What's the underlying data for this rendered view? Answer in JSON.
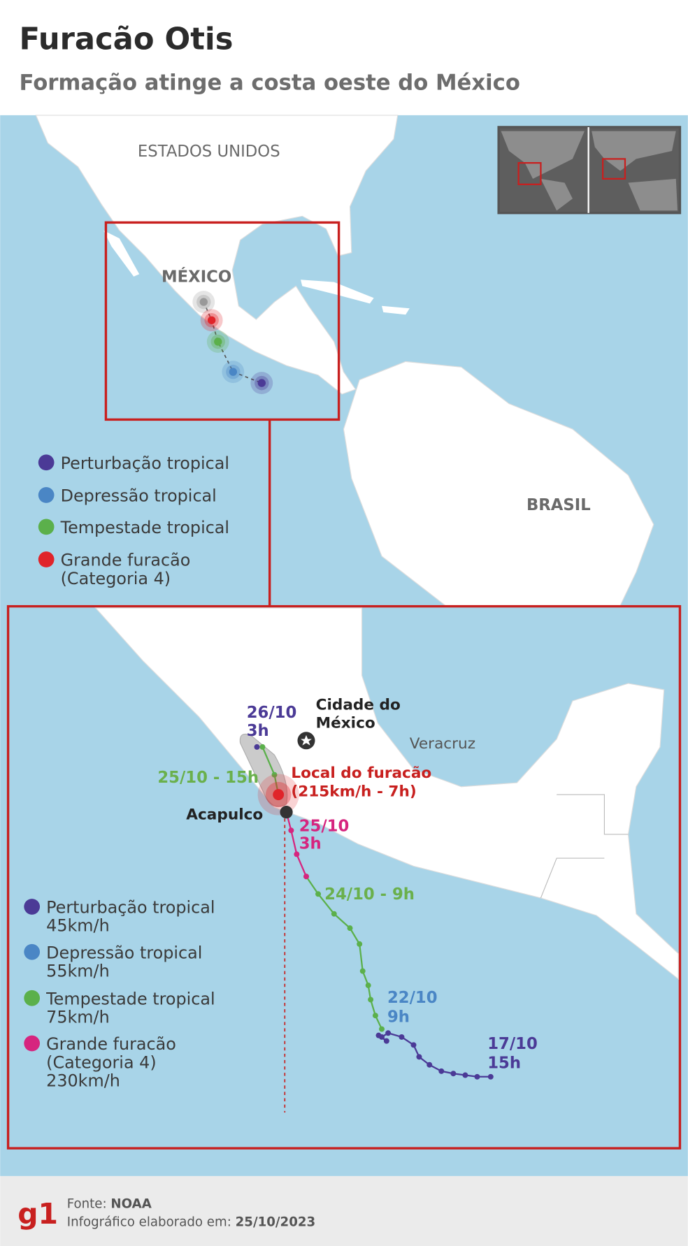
{
  "header": {
    "title": "Furacão Otis",
    "subtitle": "Formação atinge a costa oeste do México"
  },
  "overview_map": {
    "labels": [
      "ESTADOS UNIDOS",
      "MÉXICO",
      "BRASIL"
    ],
    "legend": [
      {
        "lines": [
          "Perturbação tropical"
        ]
      },
      {
        "lines": [
          "Depressão tropical"
        ]
      },
      {
        "lines": [
          "Tempestade tropical"
        ]
      },
      {
        "lines": [
          "Grande furacão",
          "(Categoria 4)"
        ]
      }
    ]
  },
  "detail_map": {
    "places": {
      "capital": [
        "Cidade do",
        "México"
      ],
      "veracruz": "Veracruz",
      "acapulco": "Acapulco"
    },
    "hurricane_location": [
      "Local do furacão",
      "(215km/h - 7h)"
    ],
    "track_labels": [
      [
        "26/10",
        "3h"
      ],
      [
        "25/10 - 15h"
      ],
      [
        "25/10",
        "3h"
      ],
      [
        "24/10 - 9h"
      ],
      [
        "22/10",
        "9h"
      ],
      [
        "17/10",
        "15h"
      ]
    ],
    "legend": [
      {
        "lines": [
          "Perturbação tropical",
          "45km/h"
        ]
      },
      {
        "lines": [
          "Depressão tropical",
          "55km/h"
        ]
      },
      {
        "lines": [
          "Tempestade tropical",
          "75km/h"
        ]
      },
      {
        "lines": [
          "Grande furacão",
          "(Categoria 4)",
          "230km/h"
        ]
      }
    ]
  },
  "footer": {
    "logo": "g1",
    "source_label": "Fonte:",
    "source": "NOAA",
    "date_label": "Infográfico elaborado em:",
    "date": "25/10/2023"
  }
}
